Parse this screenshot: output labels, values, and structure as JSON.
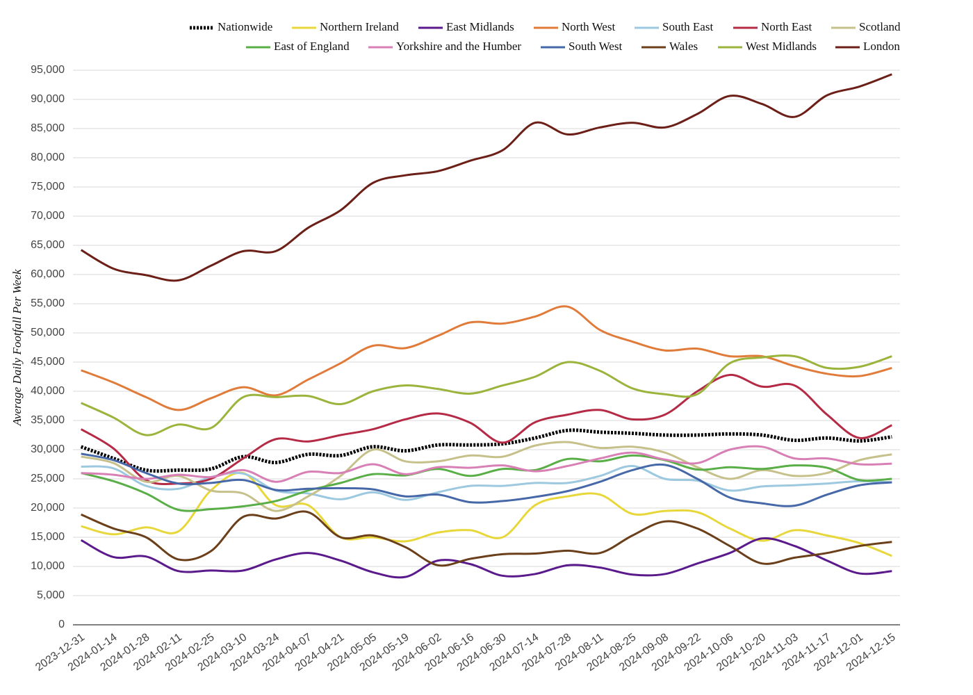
{
  "chart_data": {
    "type": "line",
    "y_label": "Average Daily Footfall Per Week",
    "x": [
      "2023-12-31",
      "2024-01-14",
      "2024-01-28",
      "2024-02-11",
      "2024-02-25",
      "2024-03-10",
      "2024-03-24",
      "2024-04-07",
      "2024-04-21",
      "2024-05-05",
      "2024-05-19",
      "2024-06-02",
      "2024-06-16",
      "2024-06-30",
      "2024-07-14",
      "2024-07-28",
      "2024-08-11",
      "2024-08-25",
      "2024-09-08",
      "2024-09-22",
      "2024-10-06",
      "2024-10-20",
      "2024-11-03",
      "2024-11-17",
      "2024-12-01",
      "2024-12-15"
    ],
    "ylim": [
      0,
      95000
    ],
    "yticks": [
      0,
      {
        "value": 5000,
        "label": "5,000"
      },
      {
        "value": 10000,
        "label": "10,000"
      },
      {
        "value": 15000,
        "label": "15,000"
      },
      {
        "value": 20000,
        "label": "20,000"
      },
      {
        "value": 25000,
        "label": "25,000"
      },
      {
        "value": 30000,
        "label": "30,000"
      },
      {
        "value": 35000,
        "label": "35,000"
      },
      {
        "value": 40000,
        "label": "40,000"
      },
      {
        "value": 45000,
        "label": "45,000"
      },
      {
        "value": 50000,
        "label": "50,000"
      },
      {
        "value": 55000,
        "label": "55,000"
      },
      {
        "value": 60000,
        "label": "60,000"
      },
      {
        "value": 65000,
        "label": "65,000"
      },
      {
        "value": 70000,
        "label": "70,000"
      },
      {
        "value": 75000,
        "label": "75,000"
      },
      {
        "value": 80000,
        "label": "80,000"
      },
      {
        "value": 85000,
        "label": "85,000"
      },
      {
        "value": 90000,
        "label": "90,000"
      },
      {
        "value": 95000,
        "label": "95,000"
      }
    ],
    "grid": true,
    "legend": "top",
    "series": [
      {
        "name": "Nationwide",
        "color": "#000000",
        "dashed": true,
        "values": [
          30500,
          28500,
          26500,
          26500,
          26700,
          28800,
          27800,
          29200,
          29000,
          30500,
          29800,
          30800,
          30800,
          31000,
          32000,
          33300,
          33000,
          32800,
          32500,
          32500,
          32700,
          32500,
          31600,
          32000,
          31500,
          32200
        ]
      },
      {
        "name": "Northern Ireland",
        "color": "#e8d73a",
        "values": [
          16900,
          15500,
          16700,
          16000,
          23000,
          26000,
          20500,
          20500,
          15000,
          15000,
          14300,
          15800,
          16200,
          15000,
          20500,
          22000,
          22300,
          19000,
          19500,
          19300,
          16500,
          14400,
          16200,
          15300,
          14000,
          11800
        ]
      },
      {
        "name": "East Midlands",
        "color": "#5b1a8c",
        "values": [
          14500,
          11600,
          11700,
          9200,
          9300,
          9300,
          11200,
          12300,
          11000,
          9000,
          8200,
          11000,
          10400,
          8400,
          8700,
          10200,
          9800,
          8600,
          8700,
          10500,
          12300,
          14800,
          13500,
          11000,
          8800,
          9200
        ]
      },
      {
        "name": "North West",
        "color": "#e07b39",
        "values": [
          43600,
          41500,
          39000,
          36800,
          38800,
          40700,
          39300,
          42000,
          44800,
          47800,
          47400,
          49500,
          51800,
          51600,
          52800,
          54500,
          50500,
          48500,
          47000,
          47300,
          46000,
          46000,
          44300,
          43000,
          42600,
          44000
        ]
      },
      {
        "name": "South East",
        "color": "#9cc8e0",
        "values": [
          27100,
          26800,
          23800,
          23300,
          25300,
          25900,
          23000,
          22500,
          21500,
          22700,
          21400,
          22700,
          23800,
          23800,
          24300,
          24300,
          25500,
          27200,
          25000,
          24700,
          23000,
          23700,
          23900,
          24200,
          24600,
          24400
        ]
      },
      {
        "name": "North East",
        "color": "#b52a45",
        "values": [
          33500,
          30200,
          24800,
          24200,
          25000,
          28500,
          31800,
          31400,
          32500,
          33500,
          35200,
          36200,
          34600,
          31200,
          34700,
          36000,
          36800,
          35200,
          36000,
          40000,
          42800,
          40800,
          41000,
          36000,
          32000,
          34200
        ]
      },
      {
        "name": "Scotland",
        "color": "#c6c08a",
        "values": [
          28800,
          27700,
          24500,
          25500,
          23000,
          22500,
          19500,
          22000,
          25500,
          30000,
          28000,
          28000,
          29000,
          28800,
          30700,
          31300,
          30300,
          30500,
          29500,
          27000,
          25000,
          26500,
          25500,
          26000,
          28200,
          29200
        ]
      },
      {
        "name": "East of England",
        "color": "#5aae47",
        "values": [
          26000,
          24600,
          22500,
          19700,
          19800,
          20300,
          21200,
          23000,
          24300,
          25800,
          25600,
          26700,
          25500,
          26700,
          26500,
          28400,
          28000,
          29000,
          28200,
          26600,
          27000,
          26700,
          27300,
          26900,
          24800,
          25000
        ]
      },
      {
        "name": "Yorkshire and the Humber",
        "color": "#d880b5",
        "values": [
          26000,
          25700,
          25000,
          25700,
          25300,
          26500,
          24500,
          26200,
          26000,
          27500,
          25800,
          27000,
          26900,
          27300,
          26300,
          27200,
          28500,
          29500,
          28300,
          27700,
          30000,
          30500,
          28500,
          28500,
          27500,
          27600
        ]
      },
      {
        "name": "South West",
        "color": "#4668a8",
        "values": [
          29300,
          28200,
          26000,
          24200,
          24300,
          24800,
          23100,
          23300,
          23400,
          23200,
          22000,
          22300,
          21000,
          21200,
          21900,
          22900,
          24500,
          26500,
          27400,
          25000,
          21800,
          20800,
          20400,
          22300,
          23900,
          24400
        ]
      },
      {
        "name": "Wales",
        "color": "#6b3f1a",
        "values": [
          18900,
          16500,
          15000,
          11200,
          12600,
          18500,
          18200,
          19300,
          15000,
          15300,
          13300,
          10200,
          11300,
          12100,
          12200,
          12700,
          12300,
          15300,
          17700,
          16500,
          13500,
          10500,
          11500,
          12300,
          13500,
          14200
        ]
      },
      {
        "name": "West Midlands",
        "color": "#9ab43c",
        "values": [
          38000,
          35500,
          32500,
          34300,
          33700,
          39000,
          39000,
          39200,
          37800,
          40000,
          41000,
          40400,
          39600,
          41000,
          42500,
          45000,
          43500,
          40500,
          39500,
          39500,
          44800,
          45800,
          46000,
          44000,
          44200,
          46000
        ]
      },
      {
        "name": "London",
        "color": "#6b1f17",
        "values": [
          64200,
          61000,
          59900,
          59000,
          61500,
          64000,
          64000,
          68000,
          71000,
          75700,
          77000,
          77700,
          79500,
          81300,
          86000,
          84000,
          85200,
          86000,
          85200,
          87500,
          90600,
          89200,
          87000,
          90700,
          92200,
          94300
        ]
      }
    ]
  }
}
